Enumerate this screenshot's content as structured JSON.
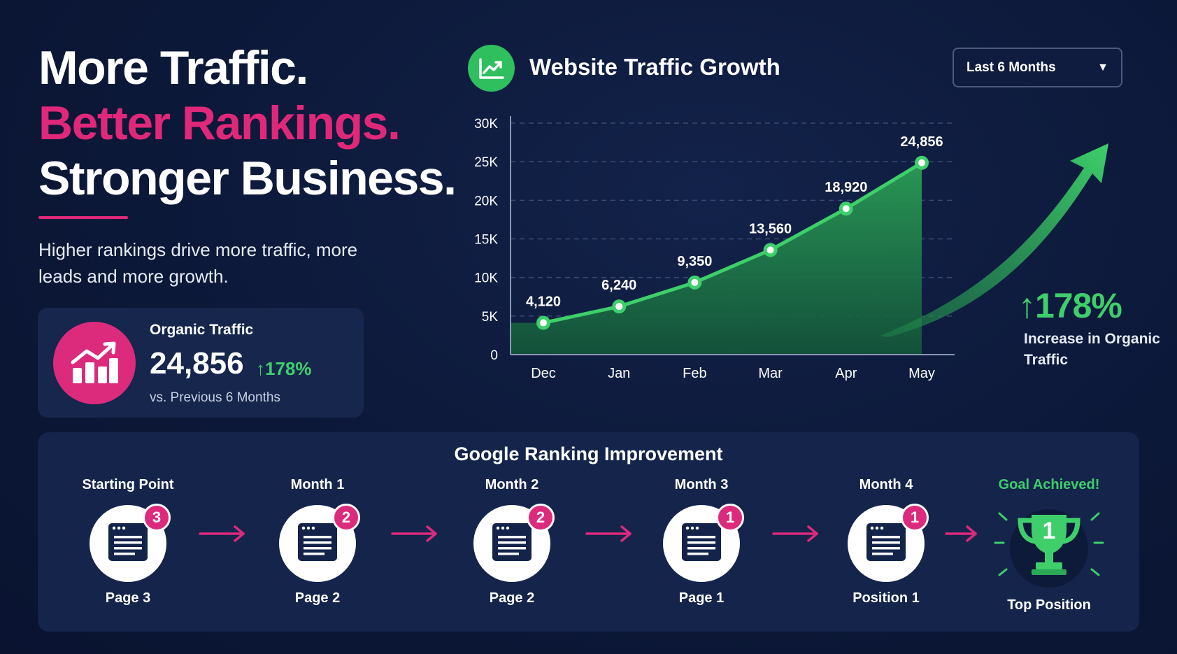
{
  "headline": {
    "line1": "More Traffic.",
    "line2": "Better Rankings.",
    "line3": "Stronger Business."
  },
  "subtext": "Higher rankings drive more traffic, more leads and more growth.",
  "organic_card": {
    "label": "Organic Traffic",
    "value": "24,856",
    "change": "↑178%",
    "note": "vs. Previous 6 Months",
    "icon": "bar-growth-icon"
  },
  "chart_header": {
    "title": "Website Traffic Growth",
    "icon": "trend-line-icon",
    "range_selected": "Last 6 Months"
  },
  "colors": {
    "background": "#0c1838",
    "pink": "#dc2a7c",
    "green": "#3ecf6b",
    "panel": "#14244b"
  },
  "chart_data": {
    "type": "area",
    "title": "Website Traffic Growth",
    "categories": [
      "Dec",
      "Jan",
      "Feb",
      "Mar",
      "Apr",
      "May"
    ],
    "series": [
      {
        "values": [
          4120,
          6240,
          9350,
          13560,
          18920,
          24856
        ]
      }
    ],
    "data_labels": [
      "4,120",
      "6,240",
      "9,350",
      "13,560",
      "18,920",
      "24,856"
    ],
    "yticks": [
      "0",
      "5K",
      "10K",
      "15K",
      "20K",
      "25K",
      "30K"
    ],
    "ylim": [
      0,
      30000
    ],
    "grid": "horizontal dashed",
    "xlabel": "",
    "ylabel": ""
  },
  "growth_callout": {
    "value": "↑178%",
    "label": "Increase in Organic Traffic"
  },
  "ranking": {
    "title": "Google Ranking Improvement",
    "steps": [
      {
        "label": "Starting Point",
        "badge": "3",
        "result": "Page 3"
      },
      {
        "label": "Month 1",
        "badge": "2",
        "result": "Page 2"
      },
      {
        "label": "Month 2",
        "badge": "2",
        "result": "Page 2"
      },
      {
        "label": "Month 3",
        "badge": "1",
        "result": "Page 1"
      },
      {
        "label": "Month 4",
        "badge": "1",
        "result": "Position 1"
      }
    ],
    "goal": {
      "label": "Goal Achieved!",
      "number": "1",
      "result": "Top Position",
      "icon": "trophy-icon"
    }
  }
}
